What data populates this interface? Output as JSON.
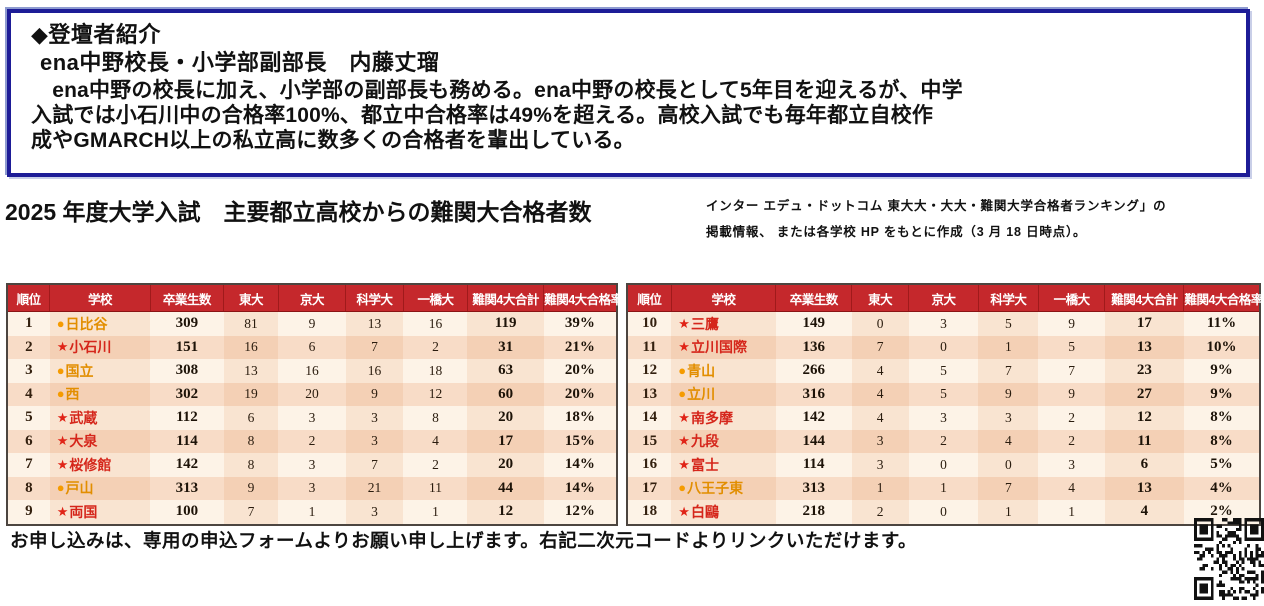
{
  "intro_box": {
    "heading": "◆登壇者紹介",
    "speaker_line": "ena中野校長・小学部副部長　内藤丈瑠",
    "body_lines": [
      "　ena中野の校長に加え、小学部の副部長も務める。ena中野の校長として5年目を迎えるが、中学",
      "入試では小石川中の合格率100%、都立中合格率は49%を超える。高校入試でも毎年都立自校作",
      "成やGMARCH以上の私立高に数多くの合格者を輩出している。"
    ]
  },
  "title_section": {
    "title": "2025 年度大学入試　主要都立高校からの難関大合格者数",
    "source_note_lines": [
      "インター エデュ・ドットコム 東大大・大大・難関大学合格者ランキング」の",
      "掲載情報、 または各学校 HP をもとに作成（3 月 18 日時点）。"
    ]
  },
  "tables": {
    "headers": [
      "順位",
      "学校",
      "卒業生数",
      "東大",
      "京大",
      "科学大",
      "一橋大",
      "難関4大合計",
      "難関4大合格率"
    ],
    "marker_legend": {
      "circle_marker": "●",
      "star_marker": "★"
    },
    "left_rows": [
      {
        "rank": "1",
        "marker": "●",
        "school": "日比谷",
        "values": [
          "309",
          "81",
          "9",
          "13",
          "16",
          "119",
          "39%"
        ]
      },
      {
        "rank": "2",
        "marker": "★",
        "school": "小石川",
        "values": [
          "151",
          "16",
          "6",
          "7",
          "2",
          "31",
          "21%"
        ]
      },
      {
        "rank": "3",
        "marker": "●",
        "school": "国立",
        "values": [
          "308",
          "13",
          "16",
          "16",
          "18",
          "63",
          "20%"
        ]
      },
      {
        "rank": "4",
        "marker": "●",
        "school": "西",
        "values": [
          "302",
          "19",
          "20",
          "9",
          "12",
          "60",
          "20%"
        ]
      },
      {
        "rank": "5",
        "marker": "★",
        "school": "武蔵",
        "values": [
          "112",
          "6",
          "3",
          "3",
          "8",
          "20",
          "18%"
        ]
      },
      {
        "rank": "6",
        "marker": "★",
        "school": "大泉",
        "values": [
          "114",
          "8",
          "2",
          "3",
          "4",
          "17",
          "15%"
        ]
      },
      {
        "rank": "7",
        "marker": "★",
        "school": "桜修館",
        "values": [
          "142",
          "8",
          "3",
          "7",
          "2",
          "20",
          "14%"
        ]
      },
      {
        "rank": "8",
        "marker": "●",
        "school": "戸山",
        "values": [
          "313",
          "9",
          "3",
          "21",
          "11",
          "44",
          "14%"
        ]
      },
      {
        "rank": "9",
        "marker": "★",
        "school": "両国",
        "values": [
          "100",
          "7",
          "1",
          "3",
          "1",
          "12",
          "12%"
        ]
      }
    ],
    "right_rows": [
      {
        "rank": "10",
        "marker": "★",
        "school": "三鷹",
        "values": [
          "149",
          "0",
          "3",
          "5",
          "9",
          "17",
          "11%"
        ]
      },
      {
        "rank": "11",
        "marker": "★",
        "school": "立川国際",
        "values": [
          "136",
          "7",
          "0",
          "1",
          "5",
          "13",
          "10%"
        ]
      },
      {
        "rank": "12",
        "marker": "●",
        "school": "青山",
        "values": [
          "266",
          "4",
          "5",
          "7",
          "7",
          "23",
          "9%"
        ]
      },
      {
        "rank": "13",
        "marker": "●",
        "school": "立川",
        "values": [
          "316",
          "4",
          "5",
          "9",
          "9",
          "27",
          "9%"
        ]
      },
      {
        "rank": "14",
        "marker": "★",
        "school": "南多摩",
        "values": [
          "142",
          "4",
          "3",
          "3",
          "2",
          "12",
          "8%"
        ]
      },
      {
        "rank": "15",
        "marker": "★",
        "school": "九段",
        "values": [
          "144",
          "3",
          "2",
          "4",
          "2",
          "11",
          "8%"
        ]
      },
      {
        "rank": "16",
        "marker": "★",
        "school": "富士",
        "values": [
          "114",
          "3",
          "0",
          "0",
          "3",
          "6",
          "5%"
        ]
      },
      {
        "rank": "17",
        "marker": "●",
        "school": "八王子東",
        "values": [
          "313",
          "1",
          "1",
          "7",
          "4",
          "13",
          "4%"
        ]
      },
      {
        "rank": "18",
        "marker": "★",
        "school": "白鷗",
        "values": [
          "218",
          "2",
          "0",
          "1",
          "1",
          "4",
          "2%"
        ]
      }
    ]
  },
  "footer": {
    "text": "お申し込みは、専用の申込フォームよりお願い申し上げます。右記二次元コードよりリンクいただけます。",
    "qr_name": "qr-code"
  },
  "colors": {
    "intro_border": "#1d1c97",
    "table_header_bg": "#c5282c",
    "table_header_text": "#ffffff",
    "circle_marker_color": "#f59b00",
    "star_marker_color": "#e02417",
    "circle_school_text": "#e28e00",
    "star_school_text": "#d5261b",
    "row_shade_light": "#fdf3e7",
    "row_shade_dark": "#f4d0b5"
  }
}
